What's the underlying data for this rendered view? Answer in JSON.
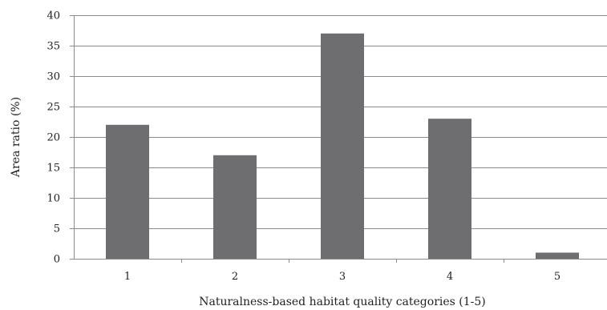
{
  "chart_data": {
    "type": "bar",
    "title": "",
    "xlabel": "Naturalness-based habitat quality categories (1-5)",
    "ylabel": "Area ratio (%)",
    "categories": [
      "1",
      "2",
      "3",
      "4",
      "5"
    ],
    "values": [
      22,
      17,
      37,
      23,
      1
    ],
    "ylim": [
      0,
      40
    ],
    "y_ticks": [
      "0",
      "5",
      "10",
      "15",
      "20",
      "25",
      "30",
      "35",
      "40"
    ],
    "grid": "horizontal",
    "legend": "none",
    "colors": {
      "bar": "#6e6e70",
      "grid": "#8c8c8c",
      "axis": "#8c8c8c"
    }
  }
}
